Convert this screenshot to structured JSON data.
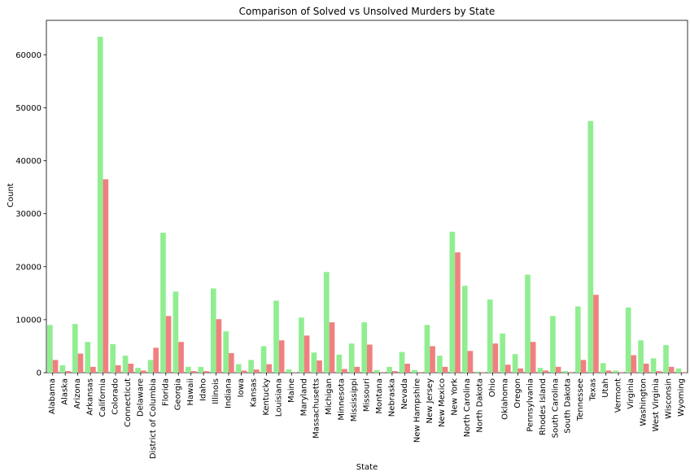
{
  "chart_data": {
    "type": "bar",
    "title": "Comparison of Solved vs Unsolved Murders by State",
    "xlabel": "State",
    "ylabel": "Count",
    "ylim": [
      0,
      66500
    ],
    "yticks": [
      0,
      10000,
      20000,
      30000,
      40000,
      50000,
      60000
    ],
    "grid": false,
    "legend": "none",
    "categories": [
      "Alabama",
      "Alaska",
      "Arizona",
      "Arkansas",
      "California",
      "Colorado",
      "Connecticut",
      "Delaware",
      "District of Columbia",
      "Florida",
      "Georgia",
      "Hawaii",
      "Idaho",
      "Illinois",
      "Indiana",
      "Iowa",
      "Kansas",
      "Kentucky",
      "Louisiana",
      "Maine",
      "Maryland",
      "Massachusetts",
      "Michigan",
      "Minnesota",
      "Mississippi",
      "Missouri",
      "Montana",
      "Nebraska",
      "Nevada",
      "New Hampshire",
      "New Jersey",
      "New Mexico",
      "New York",
      "North Carolina",
      "North Dakota",
      "Ohio",
      "Oklahoma",
      "Oregon",
      "Pennsylvania",
      "Rhodes Island",
      "South Carolina",
      "South Dakota",
      "Tennessee",
      "Texas",
      "Utah",
      "Vermont",
      "Virginia",
      "Washington",
      "West Virginia",
      "Wisconsin",
      "Wyoming"
    ],
    "series": [
      {
        "color": "#90ee90",
        "values": [
          9000,
          1400,
          9200,
          5800,
          63400,
          5400,
          3200,
          900,
          2400,
          26400,
          15300,
          1100,
          1100,
          15900,
          7800,
          1600,
          2400,
          5000,
          13600,
          600,
          10400,
          3800,
          19000,
          3400,
          5500,
          9500,
          500,
          1100,
          3900,
          500,
          9000,
          3200,
          26600,
          16400,
          200,
          13800,
          7400,
          3500,
          18500,
          900,
          10700,
          300,
          12500,
          47500,
          1800,
          400,
          12300,
          6100,
          2700,
          5200,
          800
        ]
      },
      {
        "color": "#f08080",
        "values": [
          2400,
          300,
          3600,
          1100,
          36500,
          1400,
          1700,
          400,
          4700,
          10700,
          5800,
          300,
          300,
          10100,
          3700,
          400,
          600,
          1600,
          6100,
          100,
          7000,
          2300,
          9500,
          700,
          1100,
          5300,
          100,
          300,
          1700,
          100,
          5000,
          1100,
          22700,
          4100,
          100,
          5500,
          1500,
          800,
          5800,
          400,
          1100,
          100,
          2400,
          14700,
          400,
          100,
          3300,
          1700,
          300,
          1100,
          100
        ]
      }
    ]
  }
}
